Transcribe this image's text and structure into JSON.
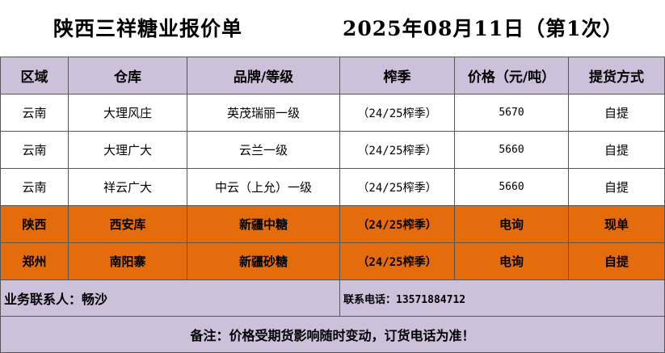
{
  "title": "陕西三祥糖业报价单",
  "date": "2025年08月11日（第1次）",
  "table": {
    "headers": [
      "区域",
      "仓库",
      "品牌/等级",
      "榨季",
      "价格（元/吨）",
      "提货方式"
    ],
    "rows": [
      [
        "云南",
        "大理风庄",
        "英茂瑞丽一级",
        "（24/25榨季）",
        "5670",
        "自提"
      ],
      [
        "云南",
        "大理广大",
        "云兰一级",
        "（24/25榨季）",
        "5660",
        "自提"
      ],
      [
        "云南",
        "祥云广大",
        "中云（上允）一级",
        "（24/25榨季）",
        "5660",
        "自提"
      ],
      [
        "陕西",
        "西安库",
        "新疆中糖",
        "（24/25榨季）",
        "电询",
        "现单"
      ],
      [
        "郑州",
        "南阳寨",
        "新疆砂糖",
        "（24/25榨季）",
        "电询",
        "自提"
      ]
    ]
  },
  "contact": {
    "person": "业务联系人：畅沙",
    "phone": "联系电话：13571884712"
  },
  "note": "备注：价格受期货影响随时变动，订货电话为准！",
  "colors": {
    "header_bg": "#ccc0da",
    "highlight_bg": "#e46c0a"
  }
}
